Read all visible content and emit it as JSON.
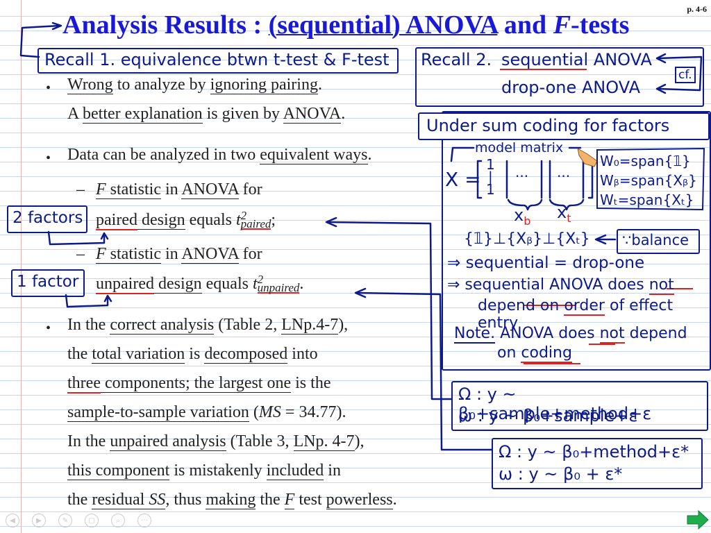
{
  "page_number": "p. 4-6",
  "title": {
    "lead": "Analysis Results : ",
    "ul1": "(sequential) ANOVA",
    "mid": " and ",
    "f": "F",
    "tail": "-tests"
  },
  "recall1": "Recall 1. equivalence btwn t-test & F-test",
  "recall2": {
    "label": "Recall 2.",
    "line1": "sequential ANOVA",
    "line2": "drop-one ANOVA",
    "cf": "cf."
  },
  "bullets": {
    "b1": {
      "w1": "Wrong",
      "w2": " to analyze by ",
      "w3": "ignoring pairing",
      "w4": ".",
      "w5": "A ",
      "w6": "better explanation",
      "w7": " is given by ",
      "w8": "ANOVA",
      "w9": "."
    },
    "b2": {
      "w1": "Data can be analyzed in two ",
      "w2": "equivalent ways",
      "w3": "."
    },
    "sub1": {
      "l1a": "F",
      "l1b": " statistic",
      "l1c": " in ",
      "l1d": "ANOVA",
      "l1e": " for",
      "l2a": "paired",
      "l2b": " design",
      "l2c": " equals ",
      "l2d": "t",
      "sup": "2",
      "sub": "paired",
      "end": ";"
    },
    "sub2": {
      "l1a": "F",
      "l1b": " statistic",
      "l1c": " in ",
      "l1d": "ANOVA",
      "l1e": " for",
      "l2a": "unpaired",
      "l2b": " design",
      "l2c": " equals ",
      "l2d": "t",
      "sup": "2",
      "sub": "unpaired",
      "end": "."
    },
    "b3": {
      "l1": [
        "In the ",
        "correct analysis",
        " (Table 2, ",
        "LNp.4-7",
        "),"
      ],
      "l2": [
        "the ",
        "total variation",
        " is ",
        "decomposed",
        " into"
      ],
      "l3": [
        "three",
        " components; the ",
        "largest one",
        " is the"
      ],
      "l4": [
        "sample-to-sample variation",
        " (",
        "MS",
        " = 34.77)."
      ],
      "l5": [
        "In the ",
        "unpaired analysis",
        " (Table 3, ",
        "LNp. 4-7",
        "),"
      ],
      "l6": [
        "this component",
        " is mistakenly ",
        "included",
        " in"
      ],
      "l7": [
        "the ",
        "residual ",
        "SS",
        ", thus ",
        "making",
        " the ",
        "F",
        " test ",
        "powerless",
        "."
      ]
    }
  },
  "annotations": {
    "two_factors": "2 factors",
    "one_factor": "1 factor"
  },
  "side_panel": {
    "header": "Under sum coding for factors",
    "model_matrix": "model matrix",
    "x_label": "X =",
    "col1": "1\n|\n1",
    "dots": "···",
    "xb": "x",
    "xb_sub": "b",
    "xt": "x",
    "xt_sub": "t",
    "w0": "W₀=span{𝟙}",
    "wb": "Wᵦ=span{Xᵦ}",
    "wt": "Wₜ=span{Xₜ}",
    "orth": "{𝟙}⊥{Xᵦ}⊥{Xₜ}",
    "balance": "∵balance",
    "seq1": "⇒ sequential = drop-one",
    "seq2a": "⇒ sequential ANOVA does ",
    "seq2b": "not",
    "seq3a": "depend on ",
    "seq3b": "order",
    "seq3c": " of effect entry",
    "note_a": "Note.",
    "note_b": " ANOVA does ",
    "note_c": "not",
    "note_d": " depend",
    "note_e": "on ",
    "note_f": "coding"
  },
  "models_box1": {
    "line1": "Ω : y ~ β₀+sample+method+ε",
    "line2": "ω : y ~ β₀+sample+ε"
  },
  "models_box2": {
    "line1": "Ω : y ~ β₀+method+ε*",
    "line2": "ω : y ~ β₀ + ε*"
  },
  "colors": {
    "title_blue": "#1a1ad6",
    "ink_blue": "#0d1a8a",
    "red": "#d22",
    "next_green": "#1fae4e"
  },
  "nav_icons": [
    "prev-icon",
    "next-icon",
    "pen-icon",
    "fullscreen-icon",
    "zoom-icon",
    "more-icon"
  ]
}
